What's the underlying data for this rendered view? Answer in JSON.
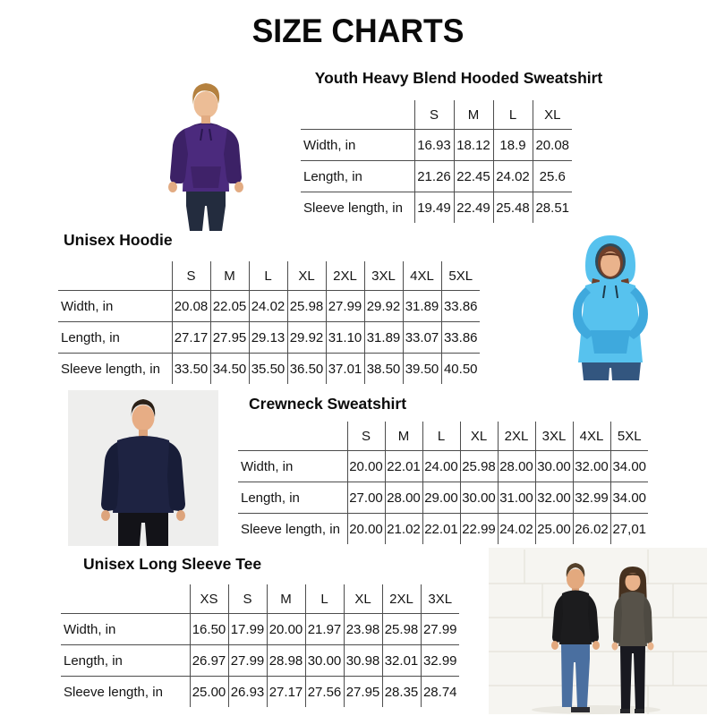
{
  "page": {
    "title": "SIZE CHARTS"
  },
  "colors": {
    "youth_hoodie_purple": "#4b2a7d",
    "youth_hoodie_purple_dark": "#3c2166",
    "sky_blue_hoodie": "#57c2ee",
    "sky_blue_hoodie_dark": "#3fa9dd",
    "navy_crewneck": "#1e2342",
    "navy_crewneck_dark": "#181d38",
    "black_tee": "#1c1c1e",
    "gray_tee": "#575249",
    "denim_blue": "#4a6fa0",
    "table_line_gray": "#4d4d4d",
    "text_black": "#0b0b0b"
  },
  "sections": [
    {
      "heading": "Youth Heavy Blend Hooded Sweatshirt",
      "photo_alt": "boy-in-purple-youth-hoodie",
      "columns": [
        "S",
        "M",
        "L",
        "XL"
      ],
      "rows": [
        {
          "label": "Width, in",
          "values": [
            "16.93",
            "18.12",
            "18.9",
            "20.08"
          ]
        },
        {
          "label": "Length, in",
          "values": [
            "21.26",
            "22.45",
            "24.02",
            "25.6"
          ]
        },
        {
          "label": "Sleeve length, in",
          "values": [
            "19.49",
            "22.49",
            "25.48",
            "28.51"
          ]
        }
      ]
    },
    {
      "heading": "Unisex Hoodie",
      "photo_alt": "woman-in-sky-blue-hoodie",
      "columns": [
        "S",
        "M",
        "L",
        "XL",
        "2XL",
        "3XL",
        "4XL",
        "5XL"
      ],
      "rows": [
        {
          "label": "Width, in",
          "values": [
            "20.08",
            "22.05",
            "24.02",
            "25.98",
            "27.99",
            "29.92",
            "31.89",
            "33.86"
          ]
        },
        {
          "label": "Length, in",
          "values": [
            "27.17",
            "27.95",
            "29.13",
            "29.92",
            "31.10",
            "31.89",
            "33.07",
            "33.86"
          ]
        },
        {
          "label": "Sleeve length, in",
          "values": [
            "33.50",
            "34.50",
            "35.50",
            "36.50",
            "37.01",
            "38.50",
            "39.50",
            "40.50"
          ]
        }
      ]
    },
    {
      "heading": "Crewneck Sweatshirt",
      "photo_alt": "man-in-navy-crewneck-sweatshirt",
      "columns": [
        "S",
        "M",
        "L",
        "XL",
        "2XL",
        "3XL",
        "4XL",
        "5XL"
      ],
      "rows": [
        {
          "label": "Width, in",
          "values": [
            "20.00",
            "22.01",
            "24.00",
            "25.98",
            "28.00",
            "30.00",
            "32.00",
            "34.00"
          ]
        },
        {
          "label": "Length, in",
          "values": [
            "27.00",
            "28.00",
            "29.00",
            "30.00",
            "31.00",
            "32.00",
            "32.99",
            "34.00"
          ]
        },
        {
          "label": "Sleeve length, in",
          "values": [
            "20.00",
            "21.02",
            "22.01",
            "22.99",
            "24.02",
            "25.00",
            "26.02",
            "27,01"
          ]
        }
      ]
    },
    {
      "heading": "Unisex Long Sleeve Tee",
      "photo_alt": "man-in-black-tee-and-woman-in-gray-tee",
      "columns": [
        "XS",
        "S",
        "M",
        "L",
        "XL",
        "2XL",
        "3XL"
      ],
      "rows": [
        {
          "label": "Width, in",
          "values": [
            "16.50",
            "17.99",
            "20.00",
            "21.97",
            "23.98",
            "25.98",
            "27.99"
          ]
        },
        {
          "label": "Length, in",
          "values": [
            "26.97",
            "27.99",
            "28.98",
            "30.00",
            "30.98",
            "32.01",
            "32.99"
          ]
        },
        {
          "label": "Sleeve length, in",
          "values": [
            "25.00",
            "26.93",
            "27.17",
            "27.56",
            "27.95",
            "28.35",
            "28.74"
          ]
        }
      ]
    }
  ]
}
